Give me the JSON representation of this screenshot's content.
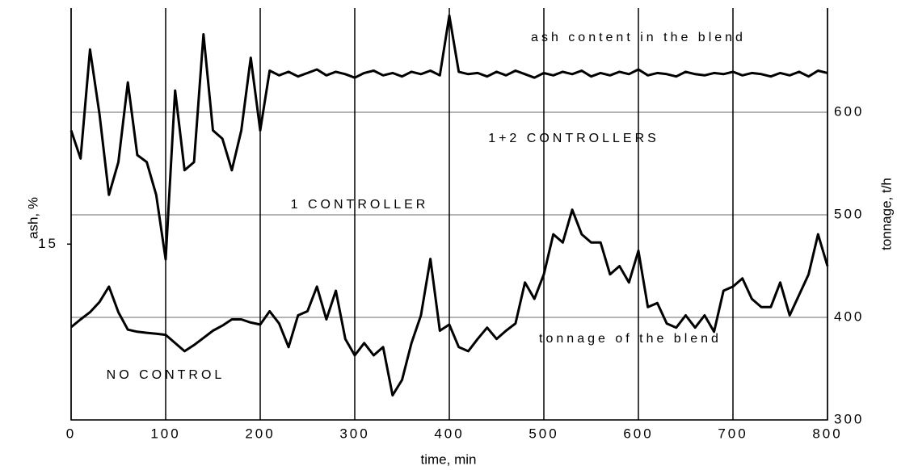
{
  "chart_data": {
    "type": "line",
    "xlabel": "time, min",
    "ylabel": "ash, %",
    "y2label": "tonnage, t/h",
    "xlim": [
      0,
      800
    ],
    "xticks": [
      0,
      100,
      200,
      300,
      400,
      500,
      600,
      700,
      800
    ],
    "ylim": [
      0,
      35
    ],
    "yticks": [
      15
    ],
    "y2lim": [
      300,
      700
    ],
    "y2ticks": [
      300,
      400,
      500,
      600
    ],
    "grid": true,
    "annotations": [
      "ash content in the blend",
      "1+2 CONTROLLERS",
      "1 CONTROLLER",
      "NO CONTROL",
      "tonnage of the blend"
    ],
    "x": [
      0,
      10,
      20,
      30,
      40,
      50,
      60,
      70,
      80,
      90,
      100,
      110,
      120,
      130,
      140,
      150,
      160,
      170,
      180,
      190,
      200,
      210,
      220,
      230,
      240,
      250,
      260,
      270,
      280,
      290,
      300,
      310,
      320,
      330,
      340,
      350,
      360,
      370,
      380,
      390,
      400,
      410,
      420,
      430,
      440,
      450,
      460,
      470,
      480,
      490,
      500,
      510,
      520,
      530,
      540,
      550,
      560,
      570,
      580,
      590,
      600,
      610,
      620,
      630,
      640,
      650,
      660,
      670,
      680,
      690,
      700,
      710,
      720,
      730,
      740,
      750,
      760,
      770,
      780,
      790,
      800
    ],
    "series": [
      {
        "color": "#000000",
        "values": [
          24.7,
          22.3,
          31.6,
          26.1,
          19.2,
          22,
          28.8,
          22.6,
          22,
          19.2,
          13.7,
          28.1,
          21.3,
          22,
          32.9,
          24.7,
          24,
          21.3,
          24.7,
          30.9,
          24.7,
          29.8,
          29.4,
          29.7,
          29.3,
          29.6,
          29.9,
          29.4,
          29.7,
          29.5,
          29.2,
          29.6,
          29.8,
          29.4,
          29.6,
          29.3,
          29.7,
          29.5,
          29.8,
          29.4,
          34.5,
          29.7,
          29.5,
          29.6,
          29.3,
          29.7,
          29.4,
          29.8,
          29.5,
          29.2,
          29.6,
          29.4,
          29.7,
          29.5,
          29.8,
          29.3,
          29.6,
          29.4,
          29.7,
          29.5,
          29.9,
          29.4,
          29.6,
          29.5,
          29.3,
          29.7,
          29.5,
          29.4,
          29.6,
          29.5,
          29.7,
          29.4,
          29.6,
          29.5,
          29.3,
          29.6,
          29.4,
          29.7,
          29.3,
          29.8,
          29.6
        ]
      },
      {
        "color": "#000000",
        "axis": "y2",
        "values": [
          390.5,
          398,
          405,
          415,
          430,
          405,
          388,
          386,
          385,
          384,
          383,
          375,
          367,
          373,
          380,
          387,
          392,
          398,
          398,
          395,
          393,
          406,
          394,
          371,
          402,
          406,
          430,
          398,
          426,
          379,
          363,
          375,
          363,
          371,
          324,
          339,
          375,
          402,
          457,
          387,
          393,
          371,
          367,
          379,
          390,
          379,
          387,
          394,
          434,
          418,
          442,
          481,
          473,
          505,
          481,
          473,
          473,
          442,
          450,
          434,
          465,
          410,
          414,
          394,
          390,
          402,
          390,
          402,
          386,
          426,
          430,
          438,
          418,
          410,
          410,
          434,
          402,
          422,
          442,
          481,
          450
        ]
      }
    ]
  }
}
